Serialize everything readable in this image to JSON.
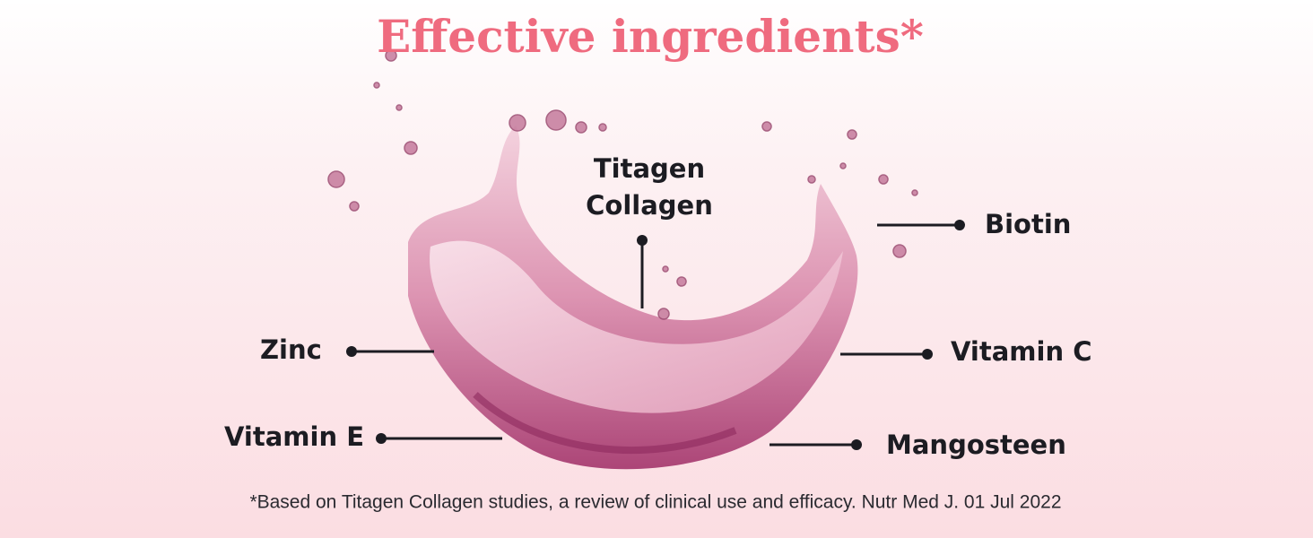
{
  "title": "Effective ingredients*",
  "ingredients": {
    "center": [
      "Titagen",
      "Collagen"
    ],
    "biotin": "Biotin",
    "zinc": "Zinc",
    "vitamin_c": "Vitamin C",
    "vitamin_e": "Vitamin E",
    "mangosteen": "Mangosteen"
  },
  "footnote": "*Based on Titagen Collagen studies, a review of clinical use and efficacy. Nutr Med J. 01 Jul 2022"
}
